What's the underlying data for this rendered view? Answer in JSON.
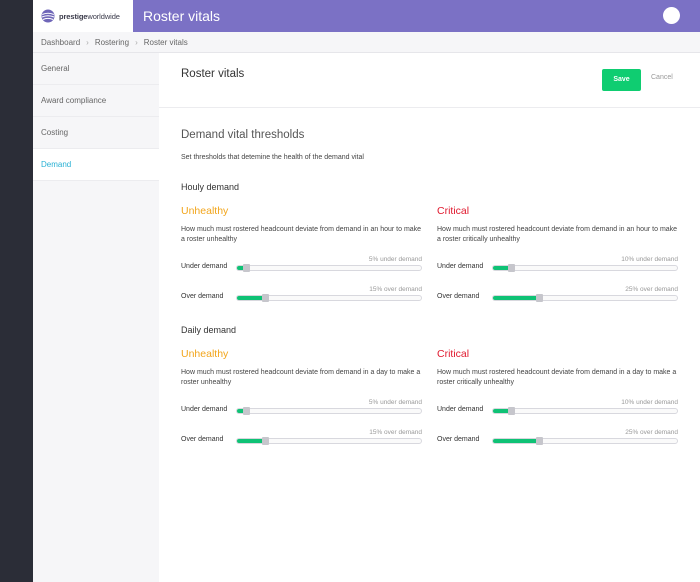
{
  "brand": {
    "name_bold": "prestige",
    "name_rest": "worldwide"
  },
  "header": {
    "title": "Roster vitals"
  },
  "breadcrumb": [
    "Dashboard",
    "Rostering",
    "Roster vitals"
  ],
  "sidebar": {
    "items": [
      {
        "label": "General",
        "active": false
      },
      {
        "label": "Award compliance",
        "active": false
      },
      {
        "label": "Costing",
        "active": false
      },
      {
        "label": "Demand",
        "active": true
      }
    ]
  },
  "page": {
    "title": "Roster vitals",
    "save_label": "Save",
    "cancel_label": "Cancel"
  },
  "section": {
    "title": "Demand vital thresholds",
    "description": "Set thresholds that detemine the health of the demand vital"
  },
  "groups": [
    {
      "title": "Houly demand",
      "columns": [
        {
          "heading": "Unhealthy",
          "level": "warn",
          "description": "How much must rostered headcount deviate from demand in an hour to make a roster unhealthy",
          "sliders": [
            {
              "label": "Under demand",
              "value_text": "5% under demand",
              "value": 5
            },
            {
              "label": "Over demand",
              "value_text": "15% over demand",
              "value": 15
            }
          ]
        },
        {
          "heading": "Critical",
          "level": "crit",
          "description": "How much must rostered headcount deviate from demand in an hour to make a roster critically unhealthy",
          "sliders": [
            {
              "label": "Under demand",
              "value_text": "10% under demand",
              "value": 10
            },
            {
              "label": "Over demand",
              "value_text": "25% over demand",
              "value": 25
            }
          ]
        }
      ]
    },
    {
      "title": "Daily demand",
      "columns": [
        {
          "heading": "Unhealthy",
          "level": "warn",
          "description": "How much must rostered headcount deviate from demand in a day to make a roster unhealthy",
          "sliders": [
            {
              "label": "Under demand",
              "value_text": "5% under demand",
              "value": 5
            },
            {
              "label": "Over demand",
              "value_text": "15% over demand",
              "value": 15
            }
          ]
        },
        {
          "heading": "Critical",
          "level": "crit",
          "description": "How much must rostered headcount deviate from demand in a day to make a roster critically unhealthy",
          "sliders": [
            {
              "label": "Under demand",
              "value_text": "10% under demand",
              "value": 10
            },
            {
              "label": "Over demand",
              "value_text": "25% over demand",
              "value": 25
            }
          ]
        }
      ]
    }
  ],
  "colors": {
    "topbar": "#7b71c5",
    "save": "#0fcd71",
    "slider_fill": "#0fc275",
    "unhealthy": "#f2a51b",
    "critical": "#e0192e",
    "active_nav": "#2ab1d4"
  }
}
